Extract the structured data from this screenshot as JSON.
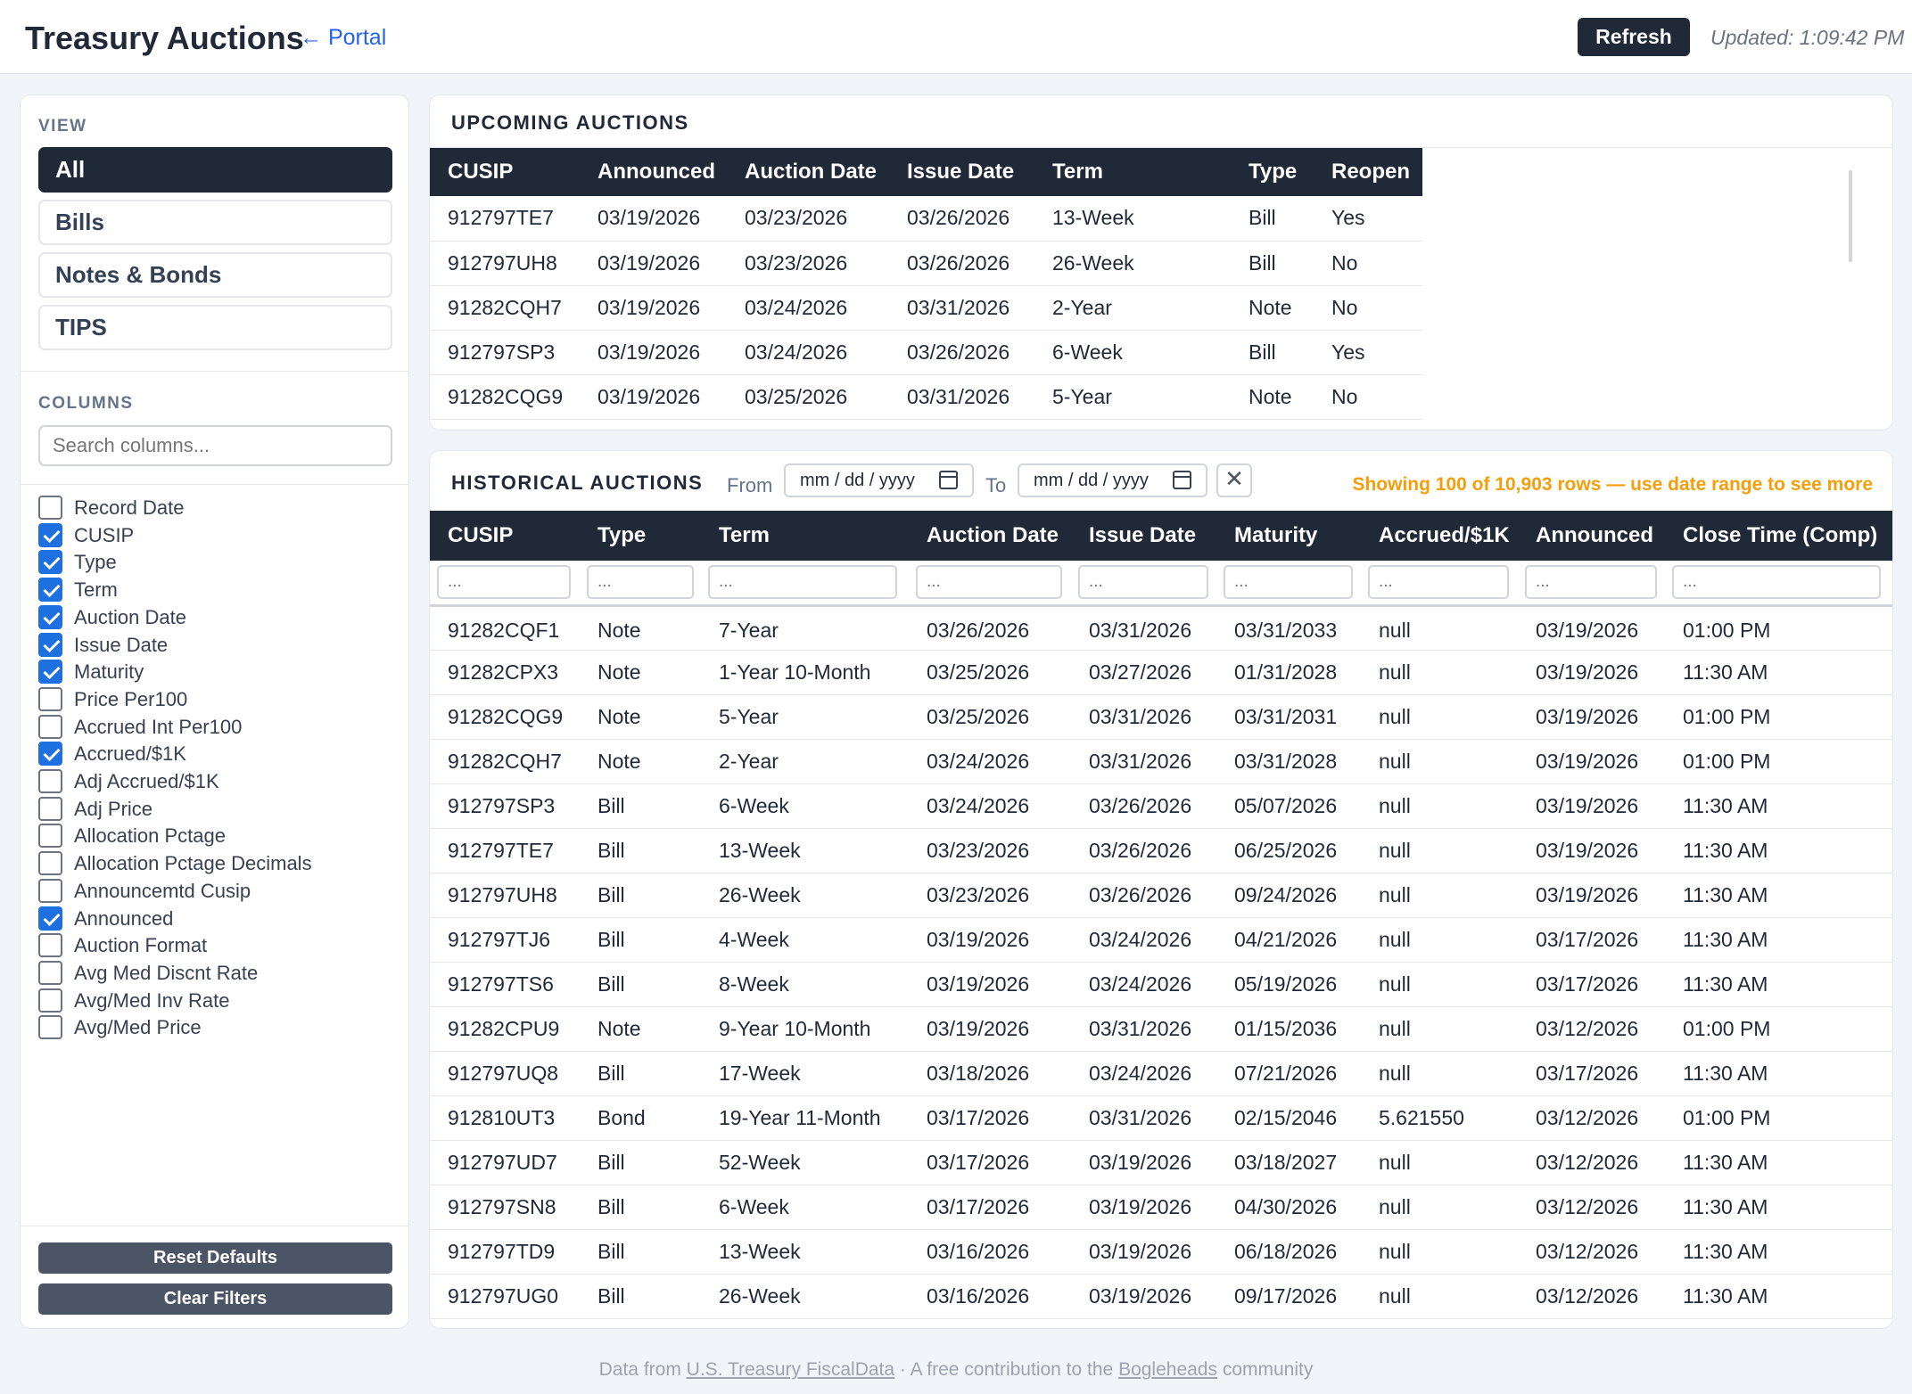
{
  "header": {
    "title": "Treasury Auctions",
    "portal_link": "← Portal",
    "refresh_label": "Refresh",
    "updated": "Updated: 1:09:42 PM"
  },
  "sidebar": {
    "view_label": "VIEW",
    "views": [
      {
        "label": "All",
        "active": true
      },
      {
        "label": "Bills",
        "active": false
      },
      {
        "label": "Notes & Bonds",
        "active": false
      },
      {
        "label": "TIPS",
        "active": false
      }
    ],
    "columns_label": "COLUMNS",
    "search_placeholder": "Search columns...",
    "columns": [
      {
        "name": "Record Date",
        "checked": false
      },
      {
        "name": "CUSIP",
        "checked": true
      },
      {
        "name": "Type",
        "checked": true
      },
      {
        "name": "Term",
        "checked": true
      },
      {
        "name": "Auction Date",
        "checked": true
      },
      {
        "name": "Issue Date",
        "checked": true
      },
      {
        "name": "Maturity",
        "checked": true
      },
      {
        "name": "Price Per100",
        "checked": false
      },
      {
        "name": "Accrued Int Per100",
        "checked": false
      },
      {
        "name": "Accrued/$1K",
        "checked": true
      },
      {
        "name": "Adj Accrued/$1K",
        "checked": false
      },
      {
        "name": "Adj Price",
        "checked": false
      },
      {
        "name": "Allocation Pctage",
        "checked": false
      },
      {
        "name": "Allocation Pctage Decimals",
        "checked": false
      },
      {
        "name": "Announcemtd Cusip",
        "checked": false
      },
      {
        "name": "Announced",
        "checked": true
      },
      {
        "name": "Auction Format",
        "checked": false
      },
      {
        "name": "Avg Med Discnt Rate",
        "checked": false
      },
      {
        "name": "Avg/Med Inv Rate",
        "checked": false
      },
      {
        "name": "Avg/Med Price",
        "checked": false
      }
    ],
    "reset_label": "Reset Defaults",
    "clear_label": "Clear Filters"
  },
  "upcoming": {
    "title": "UPCOMING AUCTIONS",
    "headers": [
      "CUSIP",
      "Announced",
      "Auction Date",
      "Issue Date",
      "Term",
      "Type",
      "Reopen"
    ],
    "rows": [
      [
        "912797TE7",
        "03/19/2026",
        "03/23/2026",
        "03/26/2026",
        "13-Week",
        "Bill",
        "Yes"
      ],
      [
        "912797UH8",
        "03/19/2026",
        "03/23/2026",
        "03/26/2026",
        "26-Week",
        "Bill",
        "No"
      ],
      [
        "91282CQH7",
        "03/19/2026",
        "03/24/2026",
        "03/31/2026",
        "2-Year",
        "Note",
        "No"
      ],
      [
        "912797SP3",
        "03/19/2026",
        "03/24/2026",
        "03/26/2026",
        "6-Week",
        "Bill",
        "Yes"
      ],
      [
        "91282CQG9",
        "03/19/2026",
        "03/25/2026",
        "03/31/2026",
        "5-Year",
        "Note",
        "No"
      ]
    ]
  },
  "historical": {
    "title": "HISTORICAL AUCTIONS",
    "from_label": "From",
    "to_label": "To",
    "date_placeholder": "mm / dd / yyyy",
    "clear_icon": "✕",
    "showing": "Showing 100 of 10,903 rows — use date range to see more",
    "filter_placeholder": "...",
    "headers": [
      "CUSIP",
      "Type",
      "Term",
      "Auction Date",
      "Issue Date",
      "Maturity",
      "Accrued/$1K",
      "Announced",
      "Close Time (Comp)"
    ],
    "rows": [
      [
        "91282CQF1",
        "Note",
        "7-Year",
        "03/26/2026",
        "03/31/2026",
        "03/31/2033",
        "null",
        "03/19/2026",
        "01:00 PM"
      ],
      [
        "91282CPX3",
        "Note",
        "1-Year 10-Month",
        "03/25/2026",
        "03/27/2026",
        "01/31/2028",
        "null",
        "03/19/2026",
        "11:30 AM"
      ],
      [
        "91282CQG9",
        "Note",
        "5-Year",
        "03/25/2026",
        "03/31/2026",
        "03/31/2031",
        "null",
        "03/19/2026",
        "01:00 PM"
      ],
      [
        "91282CQH7",
        "Note",
        "2-Year",
        "03/24/2026",
        "03/31/2026",
        "03/31/2028",
        "null",
        "03/19/2026",
        "01:00 PM"
      ],
      [
        "912797SP3",
        "Bill",
        "6-Week",
        "03/24/2026",
        "03/26/2026",
        "05/07/2026",
        "null",
        "03/19/2026",
        "11:30 AM"
      ],
      [
        "912797TE7",
        "Bill",
        "13-Week",
        "03/23/2026",
        "03/26/2026",
        "06/25/2026",
        "null",
        "03/19/2026",
        "11:30 AM"
      ],
      [
        "912797UH8",
        "Bill",
        "26-Week",
        "03/23/2026",
        "03/26/2026",
        "09/24/2026",
        "null",
        "03/19/2026",
        "11:30 AM"
      ],
      [
        "912797TJ6",
        "Bill",
        "4-Week",
        "03/19/2026",
        "03/24/2026",
        "04/21/2026",
        "null",
        "03/17/2026",
        "11:30 AM"
      ],
      [
        "912797TS6",
        "Bill",
        "8-Week",
        "03/19/2026",
        "03/24/2026",
        "05/19/2026",
        "null",
        "03/17/2026",
        "11:30 AM"
      ],
      [
        "91282CPU9",
        "Note",
        "9-Year 10-Month",
        "03/19/2026",
        "03/31/2026",
        "01/15/2036",
        "null",
        "03/12/2026",
        "01:00 PM"
      ],
      [
        "912797UQ8",
        "Bill",
        "17-Week",
        "03/18/2026",
        "03/24/2026",
        "07/21/2026",
        "null",
        "03/17/2026",
        "11:30 AM"
      ],
      [
        "912810UT3",
        "Bond",
        "19-Year 11-Month",
        "03/17/2026",
        "03/31/2026",
        "02/15/2046",
        "5.621550",
        "03/12/2026",
        "01:00 PM"
      ],
      [
        "912797UD7",
        "Bill",
        "52-Week",
        "03/17/2026",
        "03/19/2026",
        "03/18/2027",
        "null",
        "03/12/2026",
        "11:30 AM"
      ],
      [
        "912797SN8",
        "Bill",
        "6-Week",
        "03/17/2026",
        "03/19/2026",
        "04/30/2026",
        "null",
        "03/12/2026",
        "11:30 AM"
      ],
      [
        "912797TD9",
        "Bill",
        "13-Week",
        "03/16/2026",
        "03/19/2026",
        "06/18/2026",
        "null",
        "03/12/2026",
        "11:30 AM"
      ],
      [
        "912797UG0",
        "Bill",
        "26-Week",
        "03/16/2026",
        "03/19/2026",
        "09/17/2026",
        "null",
        "03/12/2026",
        "11:30 AM"
      ]
    ]
  },
  "footer": {
    "prefix": "Data from ",
    "link1": "U.S. Treasury FiscalData",
    "middle": " · A free contribution to the ",
    "link2": "Bogleheads",
    "suffix": " community"
  }
}
